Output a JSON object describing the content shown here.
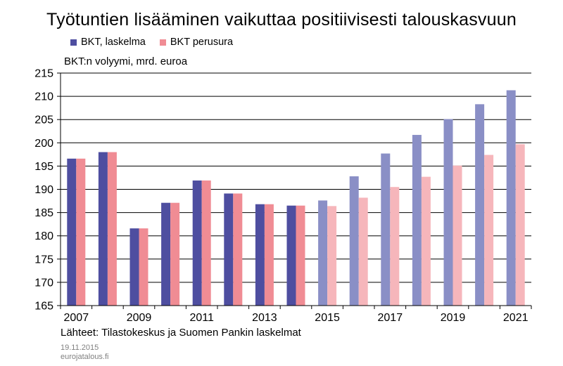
{
  "chart_data": {
    "type": "bar",
    "title": "Työtuntien lisääminen vaikuttaa positiivisesti talouskasvuun",
    "ylabel": "BKT:n volyymi, mrd. euroa",
    "xlabel": "",
    "ylim": [
      165,
      215
    ],
    "yticks": [
      165,
      170,
      175,
      180,
      185,
      190,
      195,
      200,
      205,
      210,
      215
    ],
    "categories": [
      "2007",
      "2008",
      "2009",
      "2010",
      "2011",
      "2012",
      "2013",
      "2014",
      "2015",
      "2016",
      "2017",
      "2018",
      "2019",
      "2020",
      "2021"
    ],
    "xtick_labels": [
      "2007",
      "2009",
      "2011",
      "2013",
      "2015",
      "2017",
      "2019",
      "2021"
    ],
    "forecast_from": "2015",
    "series": [
      {
        "name": "BKT, laskelma",
        "color": "#4e4ea0",
        "forecast_color": "#8a8fc6",
        "values": [
          196.6,
          198.0,
          181.6,
          187.1,
          191.9,
          189.1,
          186.8,
          186.5,
          187.6,
          192.8,
          197.7,
          201.7,
          205.1,
          208.3,
          211.3
        ]
      },
      {
        "name": "BKT perusura",
        "color": "#f08c94",
        "forecast_color": "#f6b6bb",
        "values": [
          196.6,
          198.0,
          181.6,
          187.1,
          191.9,
          189.1,
          186.8,
          186.5,
          186.4,
          188.2,
          190.5,
          192.7,
          195.1,
          197.4,
          199.7
        ]
      }
    ],
    "grid": true,
    "legend": "top-left"
  },
  "source_text": "Lähteet: Tilastokeskus ja Suomen Pankin laskelmat",
  "date": "19.11.2015",
  "site": "eurojatalous.fi"
}
